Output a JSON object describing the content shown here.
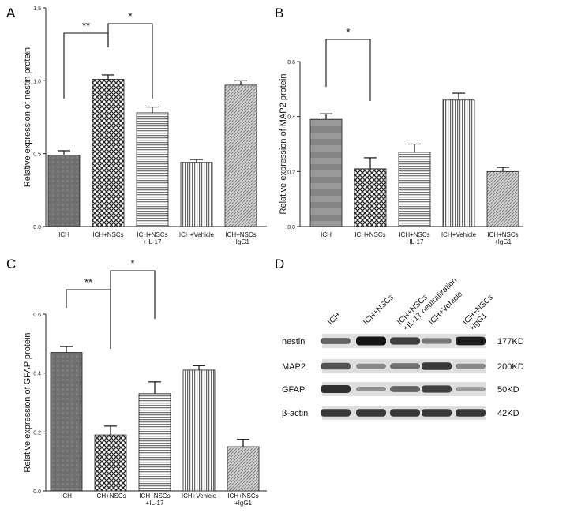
{
  "chart_data": [
    {
      "panel": "A",
      "type": "bar",
      "ylabel": "Relative expression of nestin protein",
      "ylim": [
        0,
        1.5
      ],
      "yticks": [
        "0.0",
        "0.5",
        "1.0",
        "1.5"
      ],
      "categories": [
        "ICH",
        "ICH+NSCs",
        "ICH+NSCs\n+IL-17",
        "ICH+Vehicle",
        "ICH+NSCs\n+IgG1"
      ],
      "values": [
        0.49,
        1.01,
        0.78,
        0.44,
        0.97
      ],
      "errors": [
        0.03,
        0.03,
        0.04,
        0.02,
        0.03
      ],
      "significance": [
        {
          "from": 0,
          "to": 1,
          "label": "**"
        },
        {
          "from": 1,
          "to": 2,
          "label": "*"
        }
      ]
    },
    {
      "panel": "B",
      "type": "bar",
      "ylabel": "Relative expression of MAP2 protein",
      "ylim": [
        0,
        0.6
      ],
      "yticks": [
        "0.0",
        "0.2",
        "0.4",
        "0.6"
      ],
      "categories": [
        "ICH",
        "ICH+NSCs",
        "ICH+NSCs\n+IL-17",
        "ICH+Vehicle",
        "ICH+NSCs\n+IgG1"
      ],
      "values": [
        0.39,
        0.21,
        0.27,
        0.46,
        0.2
      ],
      "errors": [
        0.02,
        0.04,
        0.03,
        0.025,
        0.015
      ],
      "significance": [
        {
          "from": 0,
          "to": 1,
          "label": "*"
        }
      ]
    },
    {
      "panel": "C",
      "type": "bar",
      "ylabel": "Relative expression of GFAP protein",
      "ylim": [
        0,
        0.6
      ],
      "yticks": [
        "0.0",
        "0.2",
        "0.4",
        "0.6"
      ],
      "categories": [
        "ICH",
        "ICH+NSCs",
        "ICH+NSCs\n+IL-17",
        "ICH+Vehicle",
        "ICH+NSCs\n+IgG1"
      ],
      "values": [
        0.47,
        0.19,
        0.33,
        0.41,
        0.15
      ],
      "errors": [
        0.02,
        0.03,
        0.04,
        0.015,
        0.025
      ],
      "significance": [
        {
          "from": 0,
          "to": 1,
          "label": "**"
        },
        {
          "from": 1,
          "to": 2,
          "label": "*"
        }
      ]
    }
  ],
  "blot": {
    "panel": "D",
    "lanes": [
      "ICH",
      "ICH+NSCs",
      "ICH+NSCs\n+IL-17 neutralization",
      "ICH+Vehicle",
      "ICH+NSCs\n+IgG1"
    ],
    "rows": [
      {
        "protein": "nestin",
        "size": "177KD",
        "intensities": [
          0.55,
          1.0,
          0.75,
          0.45,
          0.95
        ]
      },
      {
        "protein": "MAP2",
        "size": "200KD",
        "intensities": [
          0.65,
          0.35,
          0.5,
          0.8,
          0.35
        ]
      },
      {
        "protein": "GFAP",
        "size": "50KD",
        "intensities": [
          0.85,
          0.3,
          0.55,
          0.75,
          0.25
        ]
      },
      {
        "protein": "β-actin",
        "size": "42KD",
        "intensities": [
          0.8,
          0.8,
          0.8,
          0.8,
          0.8
        ]
      }
    ]
  }
}
